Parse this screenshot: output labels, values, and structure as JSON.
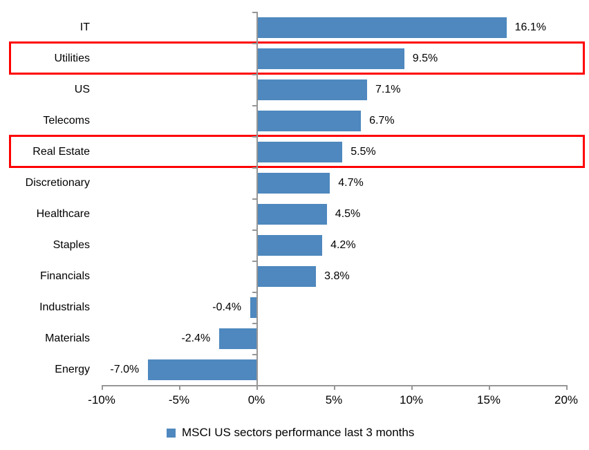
{
  "chart_data": {
    "type": "bar",
    "orientation": "horizontal",
    "title": "",
    "categories": [
      "IT",
      "Utilities",
      "US",
      "Telecoms",
      "Real Estate",
      "Discretionary",
      "Healthcare",
      "Staples",
      "Financials",
      "Industrials",
      "Materials",
      "Energy"
    ],
    "values": [
      16.1,
      9.5,
      7.1,
      6.7,
      5.5,
      4.7,
      4.5,
      4.2,
      3.8,
      -0.4,
      -2.4,
      -7.0
    ],
    "value_labels": [
      "16.1%",
      "9.5%",
      "7.1%",
      "6.7%",
      "5.5%",
      "4.7%",
      "4.5%",
      "4.2%",
      "3.8%",
      "-0.4%",
      "-2.4%",
      "-7.0%"
    ],
    "highlighted_categories": [
      "Utilities",
      "Real Estate"
    ],
    "x_tick_labels": [
      "-10%",
      "-5%",
      "0%",
      "5%",
      "10%",
      "15%",
      "20%"
    ],
    "x_tick_values": [
      -10,
      -5,
      0,
      5,
      10,
      15,
      20
    ],
    "xlim": [
      -10,
      20
    ],
    "grid": false,
    "legend": "MSCI US sectors performance last 3 months",
    "legend_position": "bottom",
    "bar_color": "#4e88be",
    "highlight_color": "#ff0000",
    "axis_color": "#969696",
    "text_color": "#000000"
  }
}
